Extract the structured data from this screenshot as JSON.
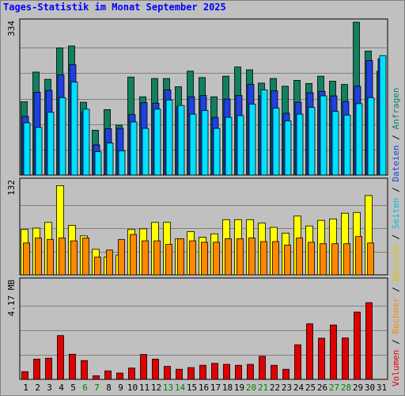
{
  "title": "Tages-Statistik im Monat September 2025",
  "colors": {
    "background": "#c0c0c0",
    "title": "#0000ff",
    "anfragen": "#108060",
    "dateien": "#2040e0",
    "seiten": "#00e0ff",
    "besuche": "#ffff00",
    "rechner": "#ff8800",
    "volumen": "#e00000",
    "weekend_day": "#008000",
    "weekday_day": "#000000"
  },
  "right_labels": {
    "top": [
      {
        "text": "Anfragen",
        "color": "#108060"
      },
      {
        "text": " / ",
        "color": "#000000"
      },
      {
        "text": "Dateien",
        "color": "#2040e0"
      },
      {
        "text": " / ",
        "color": "#000000"
      },
      {
        "text": "Seiten",
        "color": "#00c0e0"
      }
    ],
    "middle": [
      {
        "text": " / ",
        "color": "#000000"
      },
      {
        "text": "Besuche",
        "color": "#e0c000"
      },
      {
        "text": " / ",
        "color": "#000000"
      },
      {
        "text": "Rechner",
        "color": "#ff8800"
      }
    ],
    "bottom": [
      {
        "text": " / ",
        "color": "#000000"
      },
      {
        "text": "Volumen",
        "color": "#e00000"
      }
    ]
  },
  "chart_data": [
    {
      "type": "bar",
      "panel": "top",
      "y_max_label": "334",
      "ylim": [
        0,
        334
      ],
      "categories": [
        "1",
        "2",
        "3",
        "4",
        "5",
        "6",
        "7",
        "8",
        "9",
        "10",
        "11",
        "12",
        "13",
        "14",
        "15",
        "16",
        "17",
        "18",
        "19",
        "20",
        "21",
        "22",
        "23",
        "24",
        "25",
        "26",
        "27",
        "28",
        "29",
        "30",
        "31"
      ],
      "series": [
        {
          "name": "Anfragen",
          "values": [
            160,
            225,
            209,
            278,
            282,
            159,
            98,
            143,
            109,
            214,
            171,
            211,
            211,
            193,
            227,
            213,
            171,
            216,
            236,
            230,
            201,
            211,
            194,
            207,
            200,
            216,
            205,
            198,
            334,
            271,
            227
          ]
        },
        {
          "name": "Dateien",
          "values": [
            128,
            181,
            185,
            219,
            241,
            137,
            66,
            101,
            102,
            132,
            158,
            157,
            186,
            149,
            171,
            174,
            126,
            166,
            174,
            198,
            173,
            184,
            135,
            159,
            180,
            183,
            173,
            161,
            194,
            250,
            254
          ]
        },
        {
          "name": "Seiten",
          "values": [
            114,
            104,
            137,
            169,
            203,
            144,
            51,
            70,
            53,
            116,
            102,
            144,
            164,
            152,
            133,
            141,
            102,
            126,
            130,
            155,
            186,
            146,
            118,
            133,
            148,
            173,
            139,
            131,
            156,
            169,
            261
          ]
        }
      ]
    },
    {
      "type": "bar",
      "panel": "middle",
      "y_max_label": "132",
      "ylim": [
        0,
        132
      ],
      "categories": [
        "1",
        "2",
        "3",
        "4",
        "5",
        "6",
        "7",
        "8",
        "9",
        "10",
        "11",
        "12",
        "13",
        "14",
        "15",
        "16",
        "17",
        "18",
        "19",
        "20",
        "21",
        "22",
        "23",
        "24",
        "25",
        "26",
        "27",
        "28",
        "29",
        "30",
        "31"
      ],
      "series": [
        {
          "name": "Besuche",
          "values": [
            64,
            66,
            74,
            126,
            70,
            55,
            36,
            25,
            28,
            64,
            65,
            74,
            74,
            51,
            61,
            53,
            58,
            78,
            78,
            78,
            73,
            67,
            59,
            83,
            69,
            77,
            79,
            87,
            88,
            112,
            0
          ]
        },
        {
          "name": "Rechner",
          "values": [
            45,
            52,
            50,
            52,
            48,
            52,
            25,
            35,
            50,
            57,
            48,
            48,
            43,
            51,
            48,
            46,
            46,
            51,
            51,
            52,
            47,
            47,
            42,
            52,
            46,
            44,
            44,
            44,
            54,
            45,
            0
          ]
        }
      ]
    },
    {
      "type": "bar",
      "panel": "bottom",
      "y_max_label": "4.17 MB",
      "ylim": [
        0,
        4.17
      ],
      "categories": [
        "1",
        "2",
        "3",
        "4",
        "5",
        "6",
        "7",
        "8",
        "9",
        "10",
        "11",
        "12",
        "13",
        "14",
        "15",
        "16",
        "17",
        "18",
        "19",
        "20",
        "21",
        "22",
        "23",
        "24",
        "25",
        "26",
        "27",
        "28",
        "29",
        "30",
        "31"
      ],
      "series": [
        {
          "name": "Volumen",
          "values": [
            0.33,
            0.86,
            0.9,
            1.86,
            1.07,
            0.8,
            0.15,
            0.36,
            0.27,
            0.48,
            1.06,
            0.86,
            0.55,
            0.43,
            0.5,
            0.6,
            0.68,
            0.64,
            0.6,
            0.64,
            0.98,
            0.6,
            0.43,
            1.47,
            2.36,
            1.75,
            2.31,
            1.76,
            2.86,
            3.26,
            0
          ]
        }
      ]
    }
  ],
  "x_labels": [
    {
      "text": "1",
      "weekend": false
    },
    {
      "text": "2",
      "weekend": false
    },
    {
      "text": "3",
      "weekend": false
    },
    {
      "text": "4",
      "weekend": false
    },
    {
      "text": "5",
      "weekend": false
    },
    {
      "text": "6",
      "weekend": true
    },
    {
      "text": "7",
      "weekend": true
    },
    {
      "text": "8",
      "weekend": false
    },
    {
      "text": "9",
      "weekend": false
    },
    {
      "text": "10",
      "weekend": false
    },
    {
      "text": "11",
      "weekend": false
    },
    {
      "text": "12",
      "weekend": false
    },
    {
      "text": "13",
      "weekend": true
    },
    {
      "text": "14",
      "weekend": true
    },
    {
      "text": "15",
      "weekend": false
    },
    {
      "text": "16",
      "weekend": false
    },
    {
      "text": "17",
      "weekend": false
    },
    {
      "text": "18",
      "weekend": false
    },
    {
      "text": "19",
      "weekend": false
    },
    {
      "text": "20",
      "weekend": true
    },
    {
      "text": "21",
      "weekend": true
    },
    {
      "text": "22",
      "weekend": false
    },
    {
      "text": "23",
      "weekend": false
    },
    {
      "text": "24",
      "weekend": false
    },
    {
      "text": "25",
      "weekend": false
    },
    {
      "text": "26",
      "weekend": false
    },
    {
      "text": "27",
      "weekend": true
    },
    {
      "text": "28",
      "weekend": true
    },
    {
      "text": "29",
      "weekend": false
    },
    {
      "text": "30",
      "weekend": false
    },
    {
      "text": "31",
      "weekend": false
    }
  ]
}
